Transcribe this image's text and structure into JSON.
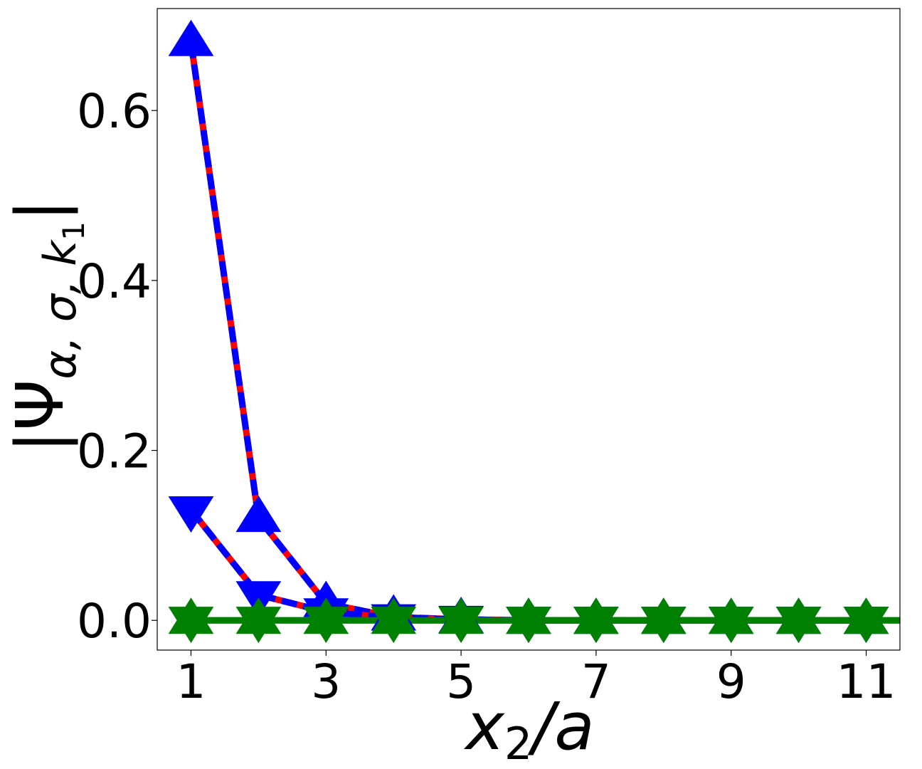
{
  "chart_data": {
    "type": "line",
    "xlabel": {
      "main": "x",
      "sub": "2",
      "tail": "/a"
    },
    "ylabel": {
      "head": "|Ψ",
      "sub": "α, σ, k",
      "subsub": "1",
      "tail": "|"
    },
    "xlim": [
      0.5,
      11.5
    ],
    "ylim": [
      -0.035,
      0.72
    ],
    "xticks": [
      1,
      3,
      5,
      7,
      9,
      11
    ],
    "xtick_labels": [
      "1",
      "3",
      "5",
      "7",
      "9",
      "11"
    ],
    "yticks": [
      0.0,
      0.2,
      0.4,
      0.6
    ],
    "ytick_labels": [
      "0.0",
      "0.2",
      "0.4",
      "0.6"
    ],
    "grid": false,
    "colors": {
      "blue": "#0000ff",
      "red": "#ff0000",
      "green": "#008000"
    },
    "series": [
      {
        "marker": "triangle-up",
        "line_color": "#ff0000",
        "dash_color": "#0000ff",
        "marker_color": "#0000ff",
        "x": [
          1,
          2,
          3,
          4,
          5,
          6,
          7,
          8,
          9,
          10,
          11
        ],
        "y": [
          0.68,
          0.12,
          0.02,
          0.004,
          0.001,
          0.0,
          0.0,
          0.0,
          0.0,
          0.0,
          0.0
        ]
      },
      {
        "marker": "triangle-down",
        "line_color": "#ff0000",
        "dash_color": "#0000ff",
        "marker_color": "#0000ff",
        "x": [
          1,
          2,
          3,
          4,
          5,
          6,
          7,
          8,
          9,
          10,
          11
        ],
        "y": [
          0.13,
          0.03,
          0.01,
          0.003,
          0.001,
          0.0,
          0.0,
          0.0,
          0.0,
          0.0,
          0.0
        ]
      },
      {
        "marker": "triangle-up",
        "line_color": "#008000",
        "dash_color": null,
        "marker_color": "#008000",
        "x": [
          1,
          2,
          3,
          4,
          5,
          6,
          7,
          8,
          9,
          10,
          11
        ],
        "y": [
          0,
          0,
          0,
          0,
          0,
          0,
          0,
          0,
          0,
          0,
          0
        ]
      },
      {
        "marker": "triangle-down",
        "line_color": "#008000",
        "dash_color": null,
        "marker_color": "#008000",
        "x": [
          1,
          2,
          3,
          4,
          5,
          6,
          7,
          8,
          9,
          10,
          11
        ],
        "y": [
          0,
          0,
          0,
          0,
          0,
          0,
          0,
          0,
          0,
          0,
          0
        ]
      }
    ]
  }
}
